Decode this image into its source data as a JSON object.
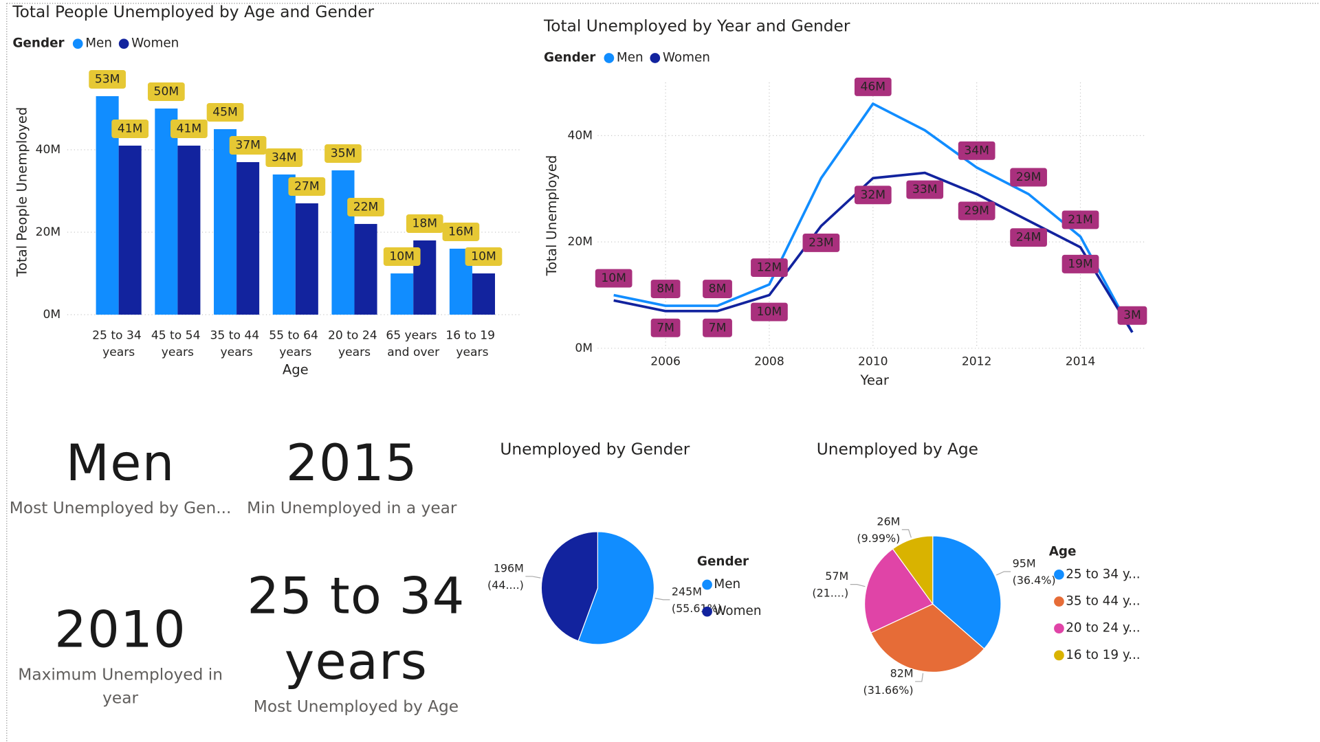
{
  "chart_data": [
    {
      "type": "bar",
      "title": "Total People Unemployed by Age and Gender",
      "legend_title": "Gender",
      "x_label": "Age",
      "y_label": "Total People Unemployed",
      "categories": [
        "25 to 34 years",
        "45 to 54 years",
        "35 to 44 years",
        "55 to 64 years",
        "20 to 24 years",
        "65 years and over",
        "16 to 19 years"
      ],
      "series": [
        {
          "name": "Men",
          "color": "#118dff",
          "values": [
            53000000,
            50000000,
            45000000,
            34000000,
            35000000,
            10000000,
            16000000
          ],
          "value_labels": [
            "53M",
            "50M",
            "45M",
            "34M",
            "35M",
            "10M",
            "16M"
          ]
        },
        {
          "name": "Women",
          "color": "#12239e",
          "values": [
            41000000,
            41000000,
            37000000,
            27000000,
            22000000,
            18000000,
            10000000
          ],
          "value_labels": [
            "41M",
            "41M",
            "37M",
            "27M",
            "22M",
            "18M",
            "10M"
          ]
        }
      ],
      "ylim": [
        0,
        60000000
      ],
      "yticks": [
        {
          "value": 0,
          "label": "0M"
        },
        {
          "value": 20000000,
          "label": "20M"
        },
        {
          "value": 40000000,
          "label": "40M"
        }
      ],
      "grid": true,
      "label_color": "#e6c834"
    },
    {
      "type": "line",
      "title": "Total Unemployed by Year and Gender",
      "legend_title": "Gender",
      "x_label": "Year",
      "y_label": "Total Unemployed",
      "x": [
        2005,
        2006,
        2007,
        2008,
        2009,
        2010,
        2011,
        2012,
        2013,
        2014,
        2015
      ],
      "series": [
        {
          "name": "Men",
          "color": "#118dff",
          "values": [
            10000000,
            8000000,
            8000000,
            12000000,
            32000000,
            46000000,
            41000000,
            34000000,
            29000000,
            21000000,
            3000000
          ],
          "value_labels": [
            "10M",
            "8M",
            "8M",
            "12M",
            null,
            "46M",
            null,
            "34M",
            "29M",
            "21M",
            null
          ]
        },
        {
          "name": "Women",
          "color": "#12239e",
          "values": [
            9000000,
            7000000,
            7000000,
            10000000,
            23000000,
            32000000,
            33000000,
            29000000,
            24000000,
            19000000,
            3000000
          ],
          "value_labels": [
            null,
            "7M",
            "7M",
            "10M",
            "23M",
            "32M",
            "33M",
            "29M",
            "24M",
            "19M",
            "3M"
          ]
        }
      ],
      "xlim": [
        2005,
        2015
      ],
      "xticks": [
        2006,
        2008,
        2010,
        2012,
        2014
      ],
      "ylim": [
        0,
        50000000
      ],
      "yticks": [
        {
          "value": 0,
          "label": "0M"
        },
        {
          "value": 20000000,
          "label": "20M"
        },
        {
          "value": 40000000,
          "label": "40M"
        }
      ],
      "grid": true,
      "label_color": "#a9307d"
    },
    {
      "type": "pie",
      "title": "Unemployed by Gender",
      "legend_title": "Gender",
      "categories": [
        "Men",
        "Women"
      ],
      "values": [
        245200000,
        195700000
      ],
      "value_labels": [
        "245M",
        "196M"
      ],
      "percent_labels": [
        "(55.61%)",
        "(44....)"
      ],
      "colors": [
        "#118dff",
        "#12239e"
      ]
    },
    {
      "type": "pie",
      "title": "Unemployed by Age",
      "legend_title": "Age",
      "categories": [
        "25 to 34 y...",
        "35 to 44 y...",
        "20 to 24 y...",
        "16 to 19 y..."
      ],
      "values": [
        94640000,
        82320000,
        57070000,
        25970000
      ],
      "value_labels": [
        "95M",
        "82M",
        "57M",
        "26M"
      ],
      "percent_labels": [
        "(36.4%)",
        "(31.66%)",
        "(21....)",
        "(9.99%)"
      ],
      "colors": [
        "#118dff",
        "#e66c37",
        "#e044a7",
        "#d9b300"
      ]
    }
  ],
  "cards": [
    {
      "value": "Men",
      "label": "Most Unemployed by Gen..."
    },
    {
      "value": "2015",
      "label": "Min Unemployed in a year"
    },
    {
      "value": "2010",
      "label": "Maximum Unemployed in year"
    },
    {
      "value": "25 to 34 years",
      "label": "Most Unemployed by Age"
    }
  ]
}
